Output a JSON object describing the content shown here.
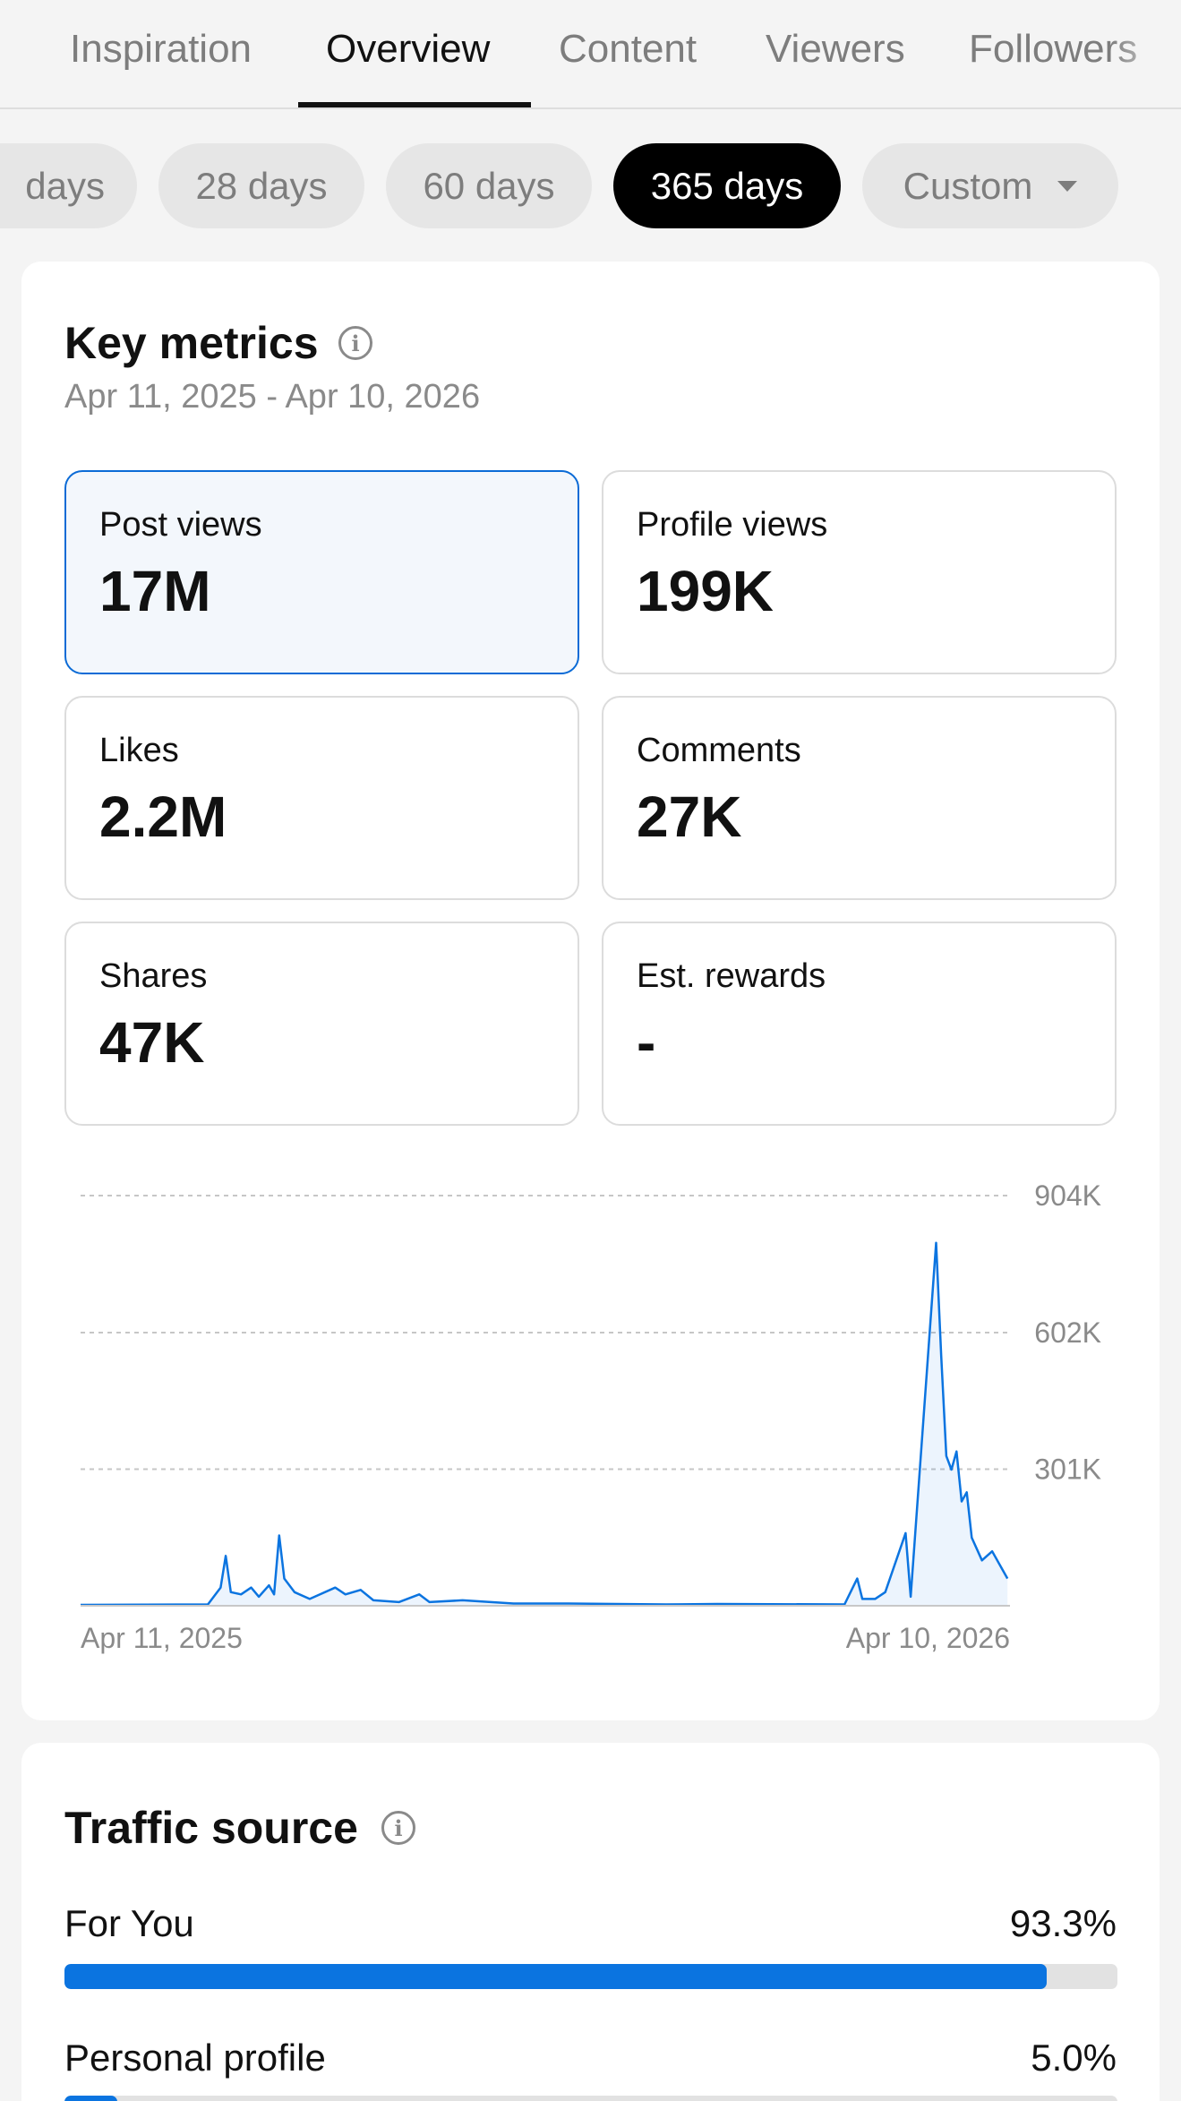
{
  "tabs": [
    {
      "label": "Inspiration",
      "active": false
    },
    {
      "label": "Overview",
      "active": true
    },
    {
      "label": "Content",
      "active": false
    },
    {
      "label": "Viewers",
      "active": false
    },
    {
      "label": "Followers",
      "active": false
    }
  ],
  "date_filters": {
    "options": [
      "days",
      "28 days",
      "60 days",
      "365 days",
      "Custom"
    ],
    "selected": "365 days"
  },
  "key_metrics": {
    "title": "Key metrics",
    "date_range": "Apr 11, 2025 - Apr 10, 2026",
    "metrics": [
      {
        "label": "Post views",
        "value": "17M",
        "selected": true
      },
      {
        "label": "Profile views",
        "value": "199K",
        "selected": false
      },
      {
        "label": "Likes",
        "value": "2.2M",
        "selected": false
      },
      {
        "label": "Comments",
        "value": "27K",
        "selected": false
      },
      {
        "label": "Shares",
        "value": "47K",
        "selected": false
      },
      {
        "label": "Est. rewards",
        "value": "-",
        "selected": false
      }
    ]
  },
  "chart_data": {
    "type": "line",
    "series": [
      {
        "name": "Post views",
        "color": "#0b74e0"
      }
    ],
    "y_ticks": [
      "904K",
      "602K",
      "301K"
    ],
    "y_tick_values": [
      904000,
      602000,
      301000
    ],
    "ylim": [
      0,
      904000
    ],
    "x_tick_labels": [
      "Apr 11, 2025",
      "Apr 10, 2026"
    ],
    "grid": true,
    "peaks": [
      {
        "day": 0,
        "value": 2000
      },
      {
        "day": 50,
        "value": 3000
      },
      {
        "day": 55,
        "value": 40000
      },
      {
        "day": 57,
        "value": 110000
      },
      {
        "day": 59,
        "value": 30000
      },
      {
        "day": 63,
        "value": 25000
      },
      {
        "day": 67,
        "value": 40000
      },
      {
        "day": 70,
        "value": 20000
      },
      {
        "day": 74,
        "value": 45000
      },
      {
        "day": 76,
        "value": 25000
      },
      {
        "day": 78,
        "value": 155000
      },
      {
        "day": 80,
        "value": 60000
      },
      {
        "day": 84,
        "value": 30000
      },
      {
        "day": 90,
        "value": 15000
      },
      {
        "day": 100,
        "value": 40000
      },
      {
        "day": 104,
        "value": 25000
      },
      {
        "day": 110,
        "value": 35000
      },
      {
        "day": 115,
        "value": 12000
      },
      {
        "day": 125,
        "value": 8000
      },
      {
        "day": 133,
        "value": 25000
      },
      {
        "day": 137,
        "value": 8000
      },
      {
        "day": 150,
        "value": 12000
      },
      {
        "day": 170,
        "value": 5000
      },
      {
        "day": 190,
        "value": 5000
      },
      {
        "day": 210,
        "value": 4000
      },
      {
        "day": 230,
        "value": 3000
      },
      {
        "day": 250,
        "value": 4000
      },
      {
        "day": 300,
        "value": 3000
      },
      {
        "day": 305,
        "value": 60000
      },
      {
        "day": 307,
        "value": 15000
      },
      {
        "day": 312,
        "value": 15000
      },
      {
        "day": 316,
        "value": 30000
      },
      {
        "day": 324,
        "value": 160000
      },
      {
        "day": 326,
        "value": 20000
      },
      {
        "day": 336,
        "value": 800000
      },
      {
        "day": 338,
        "value": 550000
      },
      {
        "day": 340,
        "value": 330000
      },
      {
        "day": 342,
        "value": 300000
      },
      {
        "day": 344,
        "value": 340000
      },
      {
        "day": 346,
        "value": 230000
      },
      {
        "day": 348,
        "value": 250000
      },
      {
        "day": 350,
        "value": 150000
      },
      {
        "day": 354,
        "value": 100000
      },
      {
        "day": 358,
        "value": 120000
      },
      {
        "day": 362,
        "value": 80000
      },
      {
        "day": 364,
        "value": 60000
      }
    ]
  },
  "traffic_source": {
    "title": "Traffic source",
    "items": [
      {
        "label": "For You",
        "value": "93.3%",
        "fraction": 0.933
      },
      {
        "label": "Personal profile",
        "value": "5.0%",
        "fraction": 0.05
      }
    ]
  }
}
